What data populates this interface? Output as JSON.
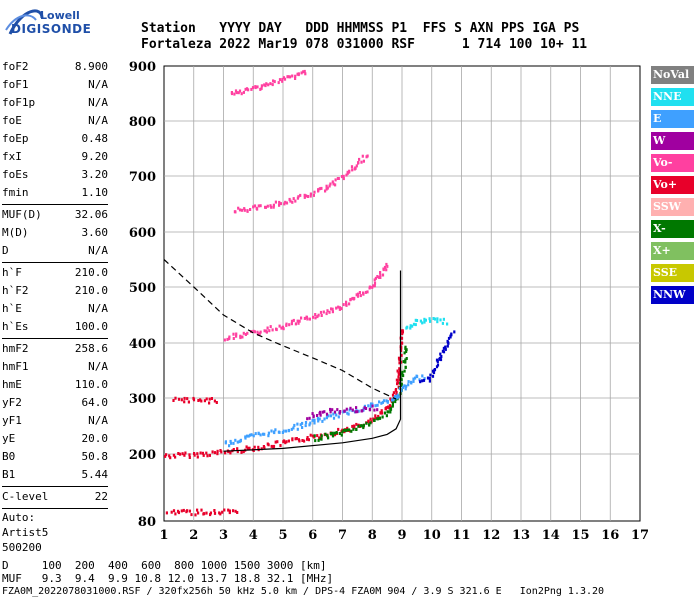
{
  "logo": {
    "top": "Lowell",
    "bottom": "DIGISONDE"
  },
  "header": {
    "line1": "Station   YYYY DAY   DDD HHMMSS P1  FFS S AXN PPS IGA PS",
    "line2": "Fortaleza 2022 Mar19 078 031000 RSF      1 714 100 10+ 11"
  },
  "params_g1": [
    {
      "label": "foF2",
      "value": "8.900"
    },
    {
      "label": "foF1",
      "value": "N/A"
    },
    {
      "label": "foF1p",
      "value": "N/A"
    },
    {
      "label": "foE",
      "value": "N/A"
    },
    {
      "label": "foEp",
      "value": "0.48"
    },
    {
      "label": "fxI",
      "value": "9.20"
    },
    {
      "label": "foEs",
      "value": "3.20"
    },
    {
      "label": "fmin",
      "value": "1.10"
    }
  ],
  "params_g2": [
    {
      "label": "MUF(D)",
      "value": "32.06"
    },
    {
      "label": "M(D)",
      "value": "3.60"
    },
    {
      "label": "D",
      "value": "N/A"
    }
  ],
  "params_g3": [
    {
      "label": "h`F",
      "value": "210.0"
    },
    {
      "label": "h`F2",
      "value": "210.0"
    },
    {
      "label": "h`E",
      "value": "N/A"
    },
    {
      "label": "h`Es",
      "value": "100.0"
    }
  ],
  "params_g4": [
    {
      "label": "hmF2",
      "value": "258.6"
    },
    {
      "label": "hmF1",
      "value": "N/A"
    },
    {
      "label": "hmE",
      "value": "110.0"
    },
    {
      "label": "yF2",
      "value": "64.0"
    },
    {
      "label": "yF1",
      "value": "N/A"
    },
    {
      "label": "yE",
      "value": "20.0"
    },
    {
      "label": "B0",
      "value": "50.8"
    },
    {
      "label": "B1",
      "value": "5.44"
    }
  ],
  "params_g5": [
    {
      "label": "C-level",
      "value": "22"
    }
  ],
  "auto": {
    "line1": "Auto:",
    "line2": "Artist5",
    "line3": "500200"
  },
  "legend": [
    {
      "label": "NoVal",
      "color": "#808080"
    },
    {
      "label": "NNE",
      "color": "#20e0f0"
    },
    {
      "label": "E",
      "color": "#3fa0ff"
    },
    {
      "label": "W",
      "color": "#a000a0"
    },
    {
      "label": "Vo-",
      "color": "#ff40a0"
    },
    {
      "label": "Vo+",
      "color": "#e8002a"
    },
    {
      "label": "SSW",
      "color": "#ffb0b0"
    },
    {
      "label": "X-",
      "color": "#007800"
    },
    {
      "label": "X+",
      "color": "#80c060"
    },
    {
      "label": "SSE",
      "color": "#c8c800"
    },
    {
      "label": "NNW",
      "color": "#0000c8"
    }
  ],
  "footer": {
    "d_line": "D     100  200  400  600  800 1000 1500 3000 [km]",
    "muf_line": "MUF   9.3  9.4  9.9 10.8 12.0 13.7 18.8 32.1 [MHz]",
    "file_line": "FZA0M_2022078031000.RSF / 320fx256h 50 kHz 5.0 km / DPS-4 FZA0M 904 / 3.9 S 321.6 E   Ion2Png 1.3.20"
  },
  "chart_data": {
    "type": "scatter",
    "xlim": [
      1,
      17
    ],
    "ylim": [
      80,
      900
    ],
    "xticks": [
      "1",
      "2",
      "3",
      "4",
      "5",
      "6",
      "7",
      "8",
      "9",
      "10",
      "11",
      "12",
      "13",
      "14",
      "15",
      "16",
      "17"
    ],
    "yticks": [
      "80",
      "200",
      "300",
      "400",
      "500",
      "600",
      "700",
      "800",
      "900"
    ],
    "grid": true,
    "traces": [
      {
        "name": "Vo+ F trace",
        "color": "#e8002a",
        "points": [
          [
            1,
            199
          ],
          [
            2,
            201
          ],
          [
            3,
            206
          ],
          [
            4,
            213
          ],
          [
            5,
            222
          ],
          [
            6,
            233
          ],
          [
            7,
            245
          ],
          [
            7.5,
            252
          ],
          [
            8,
            263
          ],
          [
            8.5,
            285
          ],
          [
            8.8,
            320
          ],
          [
            8.9,
            370
          ],
          [
            9.0,
            430
          ]
        ]
      },
      {
        "name": "X- F trace",
        "color": "#007800",
        "points": [
          [
            6,
            230
          ],
          [
            7,
            241
          ],
          [
            8,
            259
          ],
          [
            8.5,
            277
          ],
          [
            8.9,
            310
          ],
          [
            9.05,
            360
          ],
          [
            9.1,
            400
          ]
        ]
      },
      {
        "name": "E echoes",
        "color": "#3fa0ff",
        "points": [
          [
            3,
            220
          ],
          [
            4,
            235
          ],
          [
            5,
            245
          ],
          [
            6,
            260
          ],
          [
            7,
            275
          ],
          [
            8,
            290
          ],
          [
            8.7,
            300
          ],
          [
            9,
            320
          ],
          [
            9.5,
            340
          ],
          [
            9.8,
            340
          ]
        ]
      },
      {
        "name": "W echoes",
        "color": "#a000a0",
        "points": [
          [
            5.8,
            270
          ],
          [
            6.5,
            278
          ],
          [
            7,
            280
          ],
          [
            7.5,
            282
          ],
          [
            8.2,
            285
          ]
        ]
      },
      {
        "name": "second-hop Vo-",
        "color": "#ff40a0",
        "points": [
          [
            3,
            412
          ],
          [
            4,
            420
          ],
          [
            5,
            433
          ],
          [
            6,
            450
          ],
          [
            7,
            468
          ],
          [
            8,
            505
          ],
          [
            8.5,
            545
          ]
        ]
      },
      {
        "name": "third-hop Vo-",
        "color": "#ff40a0",
        "points": [
          [
            3.3,
            640
          ],
          [
            4,
            645
          ],
          [
            5,
            655
          ],
          [
            6,
            670
          ],
          [
            7,
            700
          ],
          [
            7.8,
            740
          ]
        ]
      },
      {
        "name": "fourth-hop Vo-",
        "color": "#ff40a0",
        "points": [
          [
            3.2,
            850
          ],
          [
            4,
            862
          ],
          [
            5,
            878
          ],
          [
            5.8,
            893
          ]
        ]
      },
      {
        "name": "Es trace",
        "color": "#e8002a",
        "points": [
          [
            1.1,
            98
          ],
          [
            2,
            98
          ],
          [
            3,
            98
          ],
          [
            3.5,
            98
          ]
        ]
      },
      {
        "name": "Es multiple",
        "color": "#e8002a",
        "points": [
          [
            1.3,
            298
          ],
          [
            2,
            298
          ],
          [
            2.8,
            298
          ]
        ]
      },
      {
        "name": "NNE echoes",
        "color": "#20e0f0",
        "points": [
          [
            9.1,
            430
          ],
          [
            9.5,
            440
          ],
          [
            10,
            445
          ],
          [
            10.5,
            440
          ]
        ]
      },
      {
        "name": "NNW echoes",
        "color": "#0000c8",
        "points": [
          [
            9.6,
            335
          ],
          [
            9.9,
            335
          ],
          [
            10.7,
            428
          ]
        ]
      }
    ],
    "profile_solid": [
      [
        3,
        205
      ],
      [
        5,
        210
      ],
      [
        7,
        220
      ],
      [
        8,
        228
      ],
      [
        8.5,
        235
      ],
      [
        8.8,
        245
      ],
      [
        8.95,
        262
      ],
      [
        8.95,
        300
      ],
      [
        8.95,
        400
      ],
      [
        8.95,
        530
      ]
    ],
    "profile_dashed": [
      [
        1,
        550
      ],
      [
        2,
        500
      ],
      [
        3,
        450
      ],
      [
        4,
        418
      ],
      [
        5,
        395
      ],
      [
        6,
        373
      ],
      [
        7,
        350
      ],
      [
        8,
        318
      ],
      [
        8.8,
        298
      ]
    ]
  }
}
